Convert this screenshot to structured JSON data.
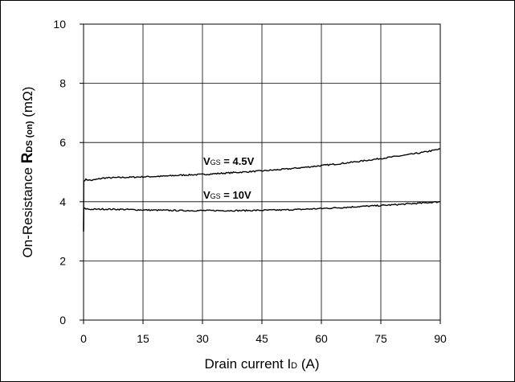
{
  "chart_data": {
    "type": "line",
    "title": "",
    "xlabel": {
      "prefix": "Drain current I",
      "sub": "D",
      "suffix": " (A)"
    },
    "ylabel": {
      "prefix": "On-Resistance ",
      "bold": "R",
      "sub": "DS (on)",
      "suffix": " (mΩ)"
    },
    "xlim": [
      0,
      90
    ],
    "ylim": [
      0,
      10
    ],
    "xticks": [
      0,
      15,
      30,
      45,
      60,
      75,
      90
    ],
    "yticks": [
      0,
      2,
      4,
      6,
      8,
      10
    ],
    "grid": true,
    "series": [
      {
        "label": {
          "main": "V",
          "sub": "GS",
          "value": " = 4.5V"
        },
        "x": [
          0,
          0.05,
          0.5,
          2,
          5,
          10,
          15,
          20,
          25,
          30,
          35,
          40,
          45,
          50,
          55,
          60,
          65,
          70,
          75,
          80,
          85,
          90
        ],
        "y": [
          3.0,
          4.7,
          4.75,
          4.72,
          4.8,
          4.82,
          4.84,
          4.86,
          4.9,
          4.92,
          4.96,
          5.0,
          5.04,
          5.09,
          5.15,
          5.22,
          5.29,
          5.37,
          5.46,
          5.55,
          5.65,
          5.78
        ]
      },
      {
        "label": {
          "main": "V",
          "sub": "GS",
          "value": " = 10V"
        },
        "x": [
          0,
          0.05,
          0.5,
          2,
          5,
          10,
          15,
          20,
          25,
          30,
          35,
          40,
          45,
          50,
          55,
          60,
          65,
          70,
          75,
          80,
          85,
          90
        ],
        "y": [
          3.0,
          3.78,
          3.76,
          3.74,
          3.75,
          3.74,
          3.72,
          3.71,
          3.7,
          3.7,
          3.7,
          3.7,
          3.71,
          3.72,
          3.74,
          3.77,
          3.8,
          3.84,
          3.87,
          3.91,
          3.95,
          4.0
        ]
      }
    ]
  }
}
